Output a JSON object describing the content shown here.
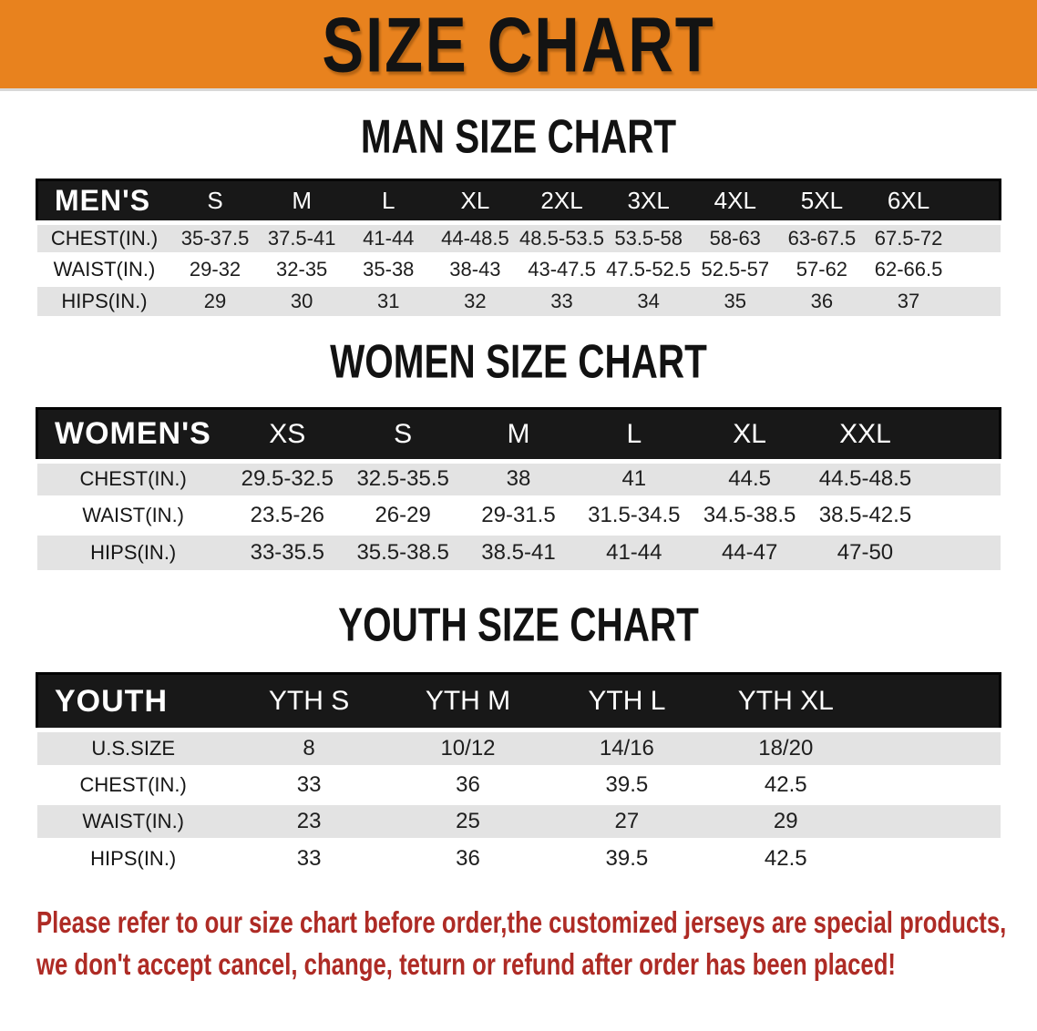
{
  "banner": {
    "title": "SIZE CHART",
    "bg_color": "#E8821E"
  },
  "sections": [
    {
      "heading": "MAN SIZE CHART",
      "table": {
        "header_label": "MEN'S",
        "columns": [
          "S",
          "M",
          "L",
          "XL",
          "2XL",
          "3XL",
          "4XL",
          "5XL",
          "6XL"
        ],
        "rows": [
          {
            "label": "CHEST(IN.)",
            "values": [
              "35-37.5",
              "37.5-41",
              "41-44",
              "44-48.5",
              "48.5-53.5",
              "53.5-58",
              "58-63",
              "63-67.5",
              "67.5-72"
            ]
          },
          {
            "label": "WAIST(IN.)",
            "values": [
              "29-32",
              "32-35",
              "35-38",
              "38-43",
              "43-47.5",
              "47.5-52.5",
              "52.5-57",
              "57-62",
              "62-66.5"
            ]
          },
          {
            "label": "HIPS(IN.)",
            "values": [
              "29",
              "30",
              "31",
              "32",
              "33",
              "34",
              "35",
              "36",
              "37"
            ]
          }
        ]
      }
    },
    {
      "heading": "WOMEN SIZE CHART",
      "table": {
        "header_label": "WOMEN'S",
        "columns": [
          "XS",
          "S",
          "M",
          "L",
          "XL",
          "XXL"
        ],
        "rows": [
          {
            "label": "CHEST(IN.)",
            "values": [
              "29.5-32.5",
              "32.5-35.5",
              "38",
              "41",
              "44.5",
              "44.5-48.5"
            ]
          },
          {
            "label": "WAIST(IN.)",
            "values": [
              "23.5-26",
              "26-29",
              "29-31.5",
              "31.5-34.5",
              "34.5-38.5",
              "38.5-42.5"
            ]
          },
          {
            "label": "HIPS(IN.)",
            "values": [
              "33-35.5",
              "35.5-38.5",
              "38.5-41",
              "41-44",
              "44-47",
              "47-50"
            ]
          }
        ]
      }
    },
    {
      "heading": "YOUTH SIZE CHART",
      "table": {
        "header_label": "YOUTH",
        "columns": [
          "YTH S",
          "YTH M",
          "YTH L",
          "YTH XL"
        ],
        "rows": [
          {
            "label": "U.S.SIZE",
            "values": [
              "8",
              "10/12",
              "14/16",
              "18/20"
            ]
          },
          {
            "label": "CHEST(IN.)",
            "values": [
              "33",
              "36",
              "39.5",
              "42.5"
            ]
          },
          {
            "label": "WAIST(IN.)",
            "values": [
              "23",
              "25",
              "27",
              "29"
            ]
          },
          {
            "label": "HIPS(IN.)",
            "values": [
              "33",
              "36",
              "39.5",
              "42.5"
            ]
          }
        ]
      }
    }
  ],
  "disclaimer": {
    "line1": "Please refer to our size chart before order,the customized jerseys are special products,",
    "line2": "we don't accept cancel, change, teturn or refund after order has been placed!",
    "color": "#AE2B25"
  },
  "colors": {
    "banner_orange": "#E8821E",
    "header_bar_black": "#181818",
    "stripe_gray": "#E3E3E3",
    "disclaimer_red": "#AE2B25"
  }
}
